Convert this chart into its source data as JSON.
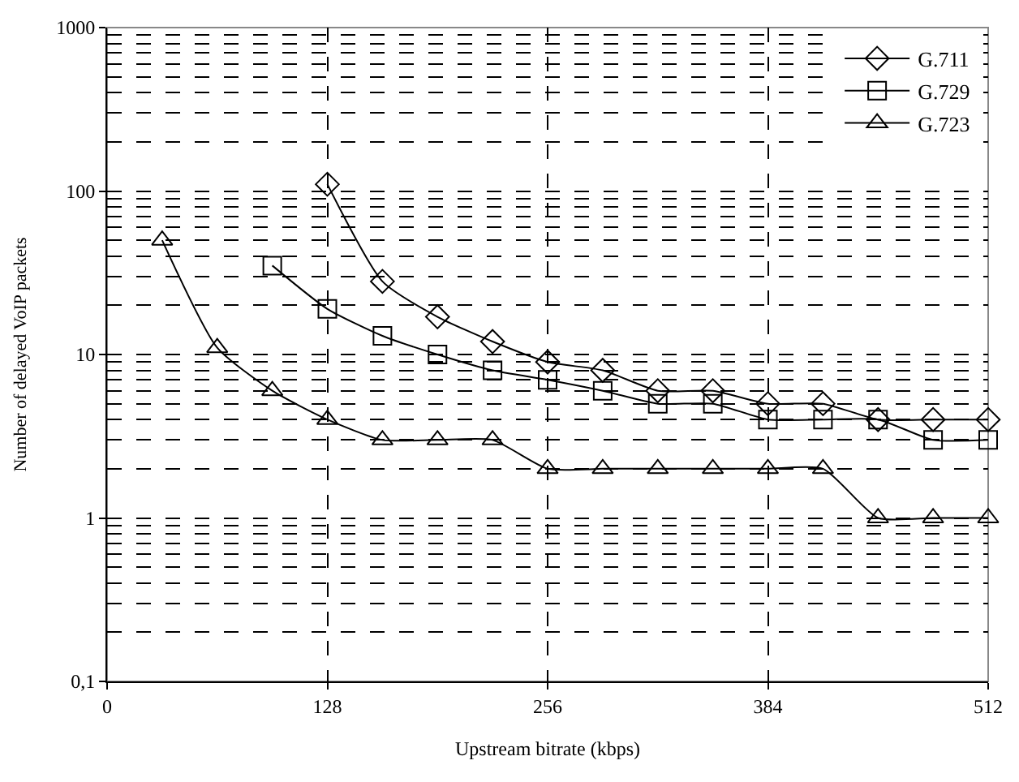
{
  "chart_data": {
    "type": "line",
    "xlabel": "Upstream bitrate (kbps)",
    "ylabel": "Number of delayed VoIP packets",
    "log": "y",
    "xlim": [
      0,
      512
    ],
    "xticks": [
      0,
      128,
      256,
      384,
      512
    ],
    "ylim": [
      0.1,
      1000
    ],
    "yticks": [
      {
        "value": 0.1,
        "label": "0,1"
      },
      1,
      10,
      100,
      1000
    ],
    "grid": true,
    "legend": "top right",
    "line_style": "solid",
    "series": [
      {
        "name": "G.711",
        "color": "#000000",
        "marker": "diamond",
        "x": [
          128,
          160,
          192,
          224,
          256,
          288,
          320,
          352,
          384,
          416,
          448,
          480,
          512
        ],
        "values": [
          110,
          28,
          17,
          12,
          9,
          8,
          6,
          6,
          5,
          5,
          4,
          4,
          4
        ]
      },
      {
        "name": "G.729",
        "color": "#000000",
        "marker": "square",
        "x": [
          96,
          128,
          160,
          192,
          224,
          256,
          288,
          320,
          352,
          384,
          416,
          448,
          480,
          512
        ],
        "values": [
          35,
          19,
          13,
          10,
          8,
          7,
          6,
          5,
          5,
          4,
          4,
          4,
          3,
          3
        ]
      },
      {
        "name": "G.723",
        "color": "#000000",
        "marker": "triangle",
        "x": [
          32,
          64,
          96,
          128,
          160,
          192,
          224,
          256,
          288,
          320,
          352,
          384,
          416,
          448,
          480,
          512
        ],
        "values": [
          50,
          11,
          6,
          4,
          3,
          3,
          3,
          2,
          2,
          2,
          2,
          2,
          2,
          1,
          1,
          1
        ]
      }
    ]
  }
}
